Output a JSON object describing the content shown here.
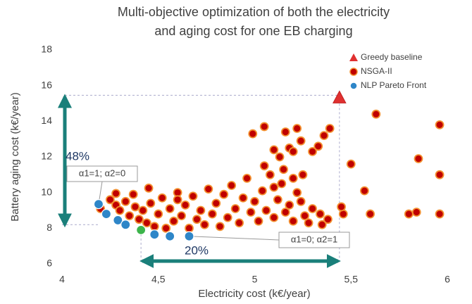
{
  "chart_data": {
    "type": "scatter",
    "title": [
      "Multi-objective optimization of both the electricity",
      "and aging cost for one EB charging"
    ],
    "x_label": "Electricity cost (k€/year)",
    "y_label": "Battery aging cost (k€/year)",
    "xlim": [
      4,
      6
    ],
    "xticks": [
      4,
      {
        "value": 4.5,
        "label": "4,5"
      },
      5,
      {
        "value": 5.5,
        "label": "5,5"
      },
      6
    ],
    "ylim": [
      6,
      18
    ],
    "yticks": [
      6,
      8,
      10,
      12,
      14,
      16,
      18
    ],
    "grid": false,
    "legend": "top-right",
    "series": [
      {
        "name": "Greedy baseline",
        "color": "#e03030",
        "marker": "triangle",
        "x": [
          5.44
        ],
        "values": [
          15.3
        ]
      },
      {
        "name": "NSGA-II",
        "color": "#c00000",
        "marker": "circle",
        "x": [
          4.25,
          4.28,
          4.3,
          4.33,
          4.35,
          4.37,
          4.38,
          4.4,
          4.42,
          4.44,
          4.46,
          4.48,
          4.5,
          4.52,
          4.54,
          4.56,
          4.58,
          4.6,
          4.62,
          4.64,
          4.66,
          4.68,
          4.7,
          4.72,
          4.74,
          4.76,
          4.78,
          4.8,
          4.82,
          4.84,
          4.86,
          4.88,
          4.9,
          4.92,
          4.94,
          4.96,
          4.98,
          5.0,
          5.02,
          5.04,
          5.06,
          5.08,
          5.1,
          5.12,
          5.14,
          5.16,
          5.18,
          5.2,
          5.22,
          5.24,
          5.26,
          5.3,
          5.34,
          5.38,
          4.45,
          4.2,
          4.28,
          4.6,
          4.99,
          5.05,
          5.1,
          5.13,
          5.16,
          5.18,
          5.2,
          5.22,
          5.24,
          5.3,
          5.33,
          5.36,
          5.39,
          5.15,
          5.2,
          5.25,
          5.05,
          5.1,
          5.46,
          5.6,
          5.8,
          5.84,
          5.96,
          5.5,
          5.57,
          5.63,
          5.85,
          5.96,
          5.96,
          5.45,
          5.35,
          5.28
        ],
        "values": [
          9.6,
          9.3,
          9.0,
          9.5,
          8.7,
          9.9,
          9.2,
          8.5,
          9.0,
          8.3,
          9.4,
          8.1,
          8.8,
          9.7,
          8.0,
          9.1,
          8.4,
          10.0,
          8.7,
          9.3,
          8.0,
          9.8,
          8.5,
          9.0,
          8.2,
          10.2,
          8.8,
          9.4,
          8.1,
          9.9,
          8.6,
          10.4,
          9.1,
          8.3,
          9.7,
          10.8,
          8.9,
          9.5,
          8.4,
          10.1,
          9.0,
          11.0,
          8.6,
          9.6,
          10.5,
          8.9,
          9.3,
          8.4,
          10.0,
          9.5,
          8.7,
          9.1,
          8.8,
          8.5,
          10.25,
          9.1,
          9.95,
          9.6,
          13.3,
          13.7,
          12.4,
          12.0,
          13.4,
          12.5,
          12.3,
          13.6,
          12.9,
          12.3,
          12.6,
          13.2,
          13.6,
          11.3,
          10.8,
          11.0,
          11.5,
          10.3,
          8.8,
          8.8,
          8.8,
          8.9,
          8.8,
          11.6,
          10.1,
          14.4,
          11.9,
          13.8,
          11.0,
          9.2,
          8.2,
          8.3
        ]
      },
      {
        "name": "NLP Pareto Front",
        "color": "#2e86c8",
        "marker": "circle",
        "point_colors": [
          "#2e86c8",
          "#2e86c8",
          "#2e86c8",
          "#2e86c8",
          "#3cb44b",
          "#2e86c8",
          "#2e86c8",
          "#2e86c8"
        ],
        "x": [
          4.19,
          4.23,
          4.29,
          4.33,
          4.41,
          4.48,
          4.56,
          4.66
        ],
        "values": [
          9.35,
          8.8,
          8.45,
          8.2,
          7.9,
          7.65,
          7.55,
          7.55
        ]
      }
    ],
    "annotations": [
      "48%",
      "20%",
      "α1=1; α2=0",
      "α1=0; α2=1"
    ]
  }
}
